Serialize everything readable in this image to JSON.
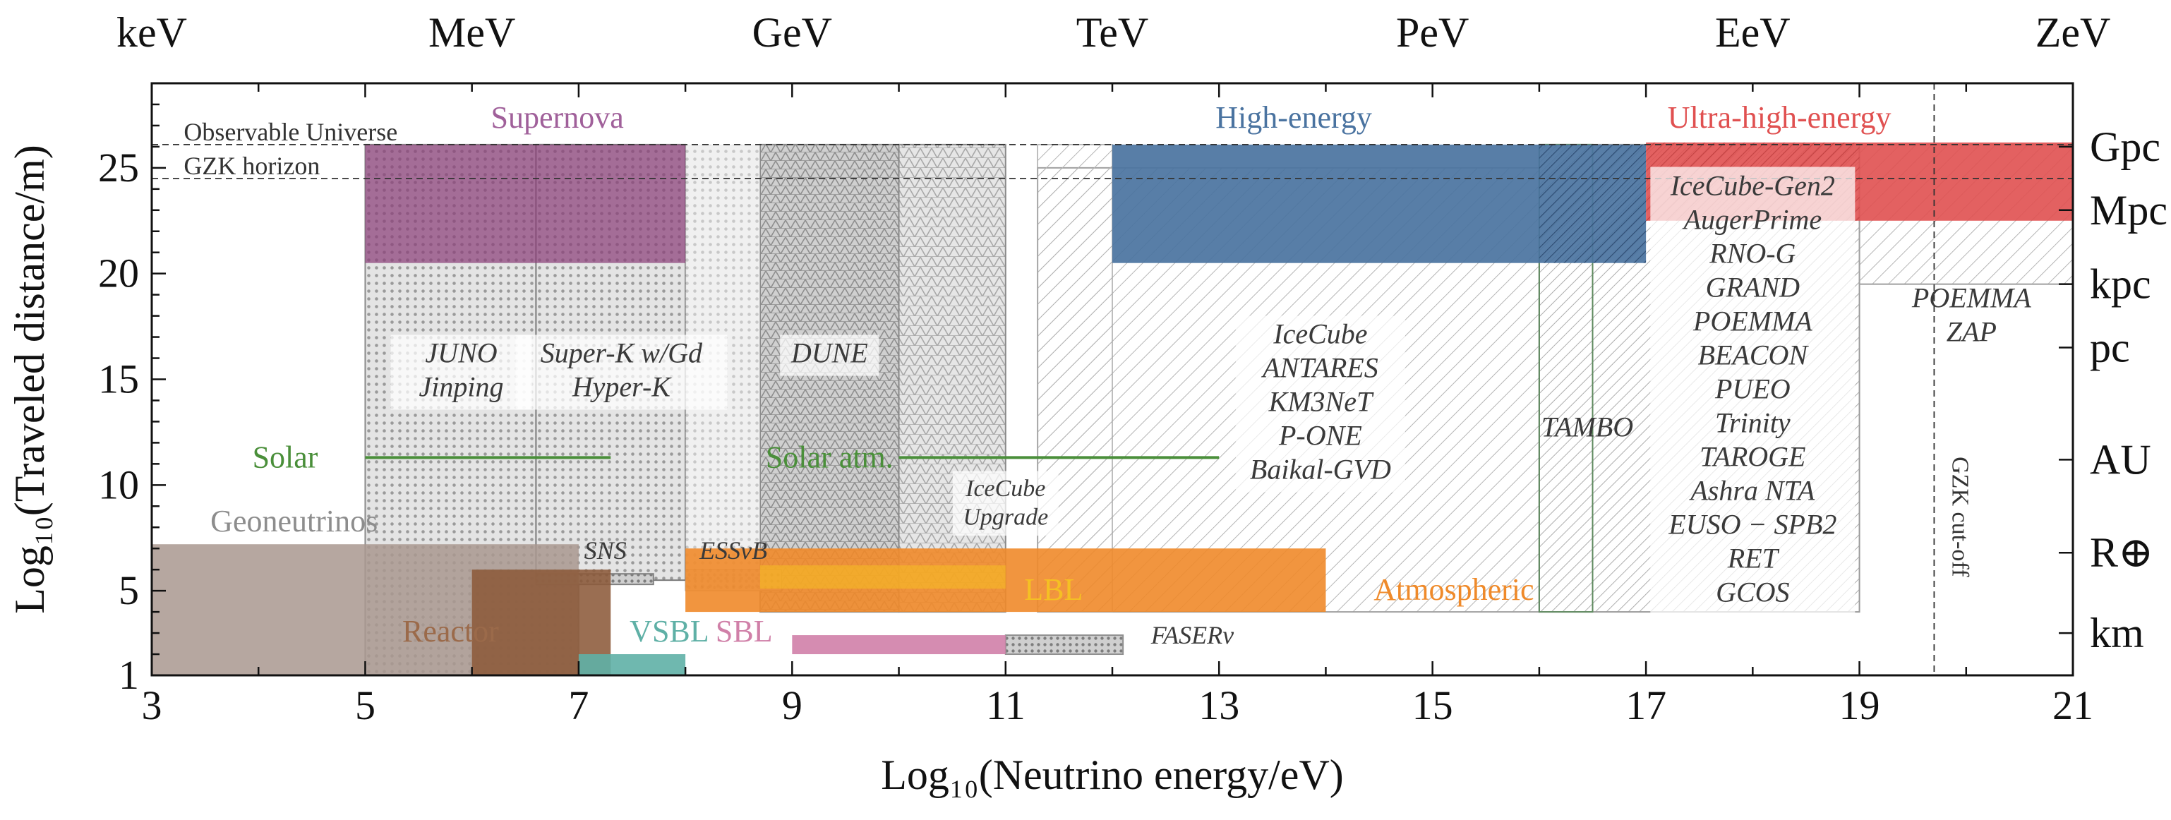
{
  "chart_data": {
    "type": "range-region",
    "title": "",
    "xlabel": "Log₁₀(Neutrino energy/eV)",
    "ylabel": "Log₁₀(Traveled distance/m)",
    "xlim": [
      3,
      21
    ],
    "ylim": [
      1,
      29
    ],
    "x_ticks": [
      3,
      5,
      7,
      9,
      11,
      13,
      15,
      17,
      19,
      21
    ],
    "y_ticks": [
      1,
      5,
      10,
      15,
      20,
      25
    ],
    "top_axis_labels": [
      {
        "x": 3,
        "label": "keV"
      },
      {
        "x": 6,
        "label": "MeV"
      },
      {
        "x": 9,
        "label": "GeV"
      },
      {
        "x": 12,
        "label": "TeV"
      },
      {
        "x": 15,
        "label": "PeV"
      },
      {
        "x": 18,
        "label": "EeV"
      },
      {
        "x": 21,
        "label": "ZeV"
      }
    ],
    "right_axis_labels": [
      {
        "y": 26.0,
        "label": "Gpc"
      },
      {
        "y": 23.0,
        "label": "Mpc"
      },
      {
        "y": 19.5,
        "label": "kpc"
      },
      {
        "y": 16.5,
        "label": "pc"
      },
      {
        "y": 11.2,
        "label": "AU"
      },
      {
        "y": 6.8,
        "label": "R⊕"
      },
      {
        "y": 3.0,
        "label": "km"
      }
    ],
    "reference_lines": [
      {
        "y": 26.1,
        "label": "Observable Universe"
      },
      {
        "y": 24.5,
        "label": "GZK horizon"
      }
    ],
    "vertical_lines": [
      {
        "x": 19.7,
        "label": "GZK cut-off"
      }
    ],
    "source_regions": [
      {
        "name": "Geoneutrinos",
        "x": [
          3,
          7
        ],
        "y": [
          1,
          7.2
        ],
        "color": "#a9988f"
      },
      {
        "name": "Reactor",
        "x": [
          6,
          7.3
        ],
        "y": [
          1,
          6.0
        ],
        "color": "#8c5a3a"
      },
      {
        "name": "Supernova",
        "x": [
          5,
          8
        ],
        "y": [
          20.5,
          26.1
        ],
        "color": "#8b3f78"
      },
      {
        "name": "Solar",
        "x": [
          5,
          7.3
        ],
        "y": [
          11.3,
          11.3
        ],
        "color": "#4a8f3a"
      },
      {
        "name": "Solar atm.",
        "x": [
          10,
          13
        ],
        "y": [
          11.3,
          11.3
        ],
        "color": "#4a8f3a"
      },
      {
        "name": "VSBL",
        "x": [
          7,
          8
        ],
        "y": [
          1,
          2.0
        ],
        "color": "#5fb0a6"
      },
      {
        "name": "SBL",
        "x": [
          9,
          11
        ],
        "y": [
          2.0,
          2.9
        ],
        "color": "#d080a8"
      },
      {
        "name": "LBL",
        "x": [
          8.7,
          11
        ],
        "y": [
          5.1,
          6.2
        ],
        "color": "#f5c023"
      },
      {
        "name": "Atmospheric",
        "x": [
          8,
          14
        ],
        "y": [
          4.0,
          7.0
        ],
        "color": "#ef8a2a"
      },
      {
        "name": "High-energy",
        "x": [
          12,
          17
        ],
        "y": [
          20.5,
          26.1
        ],
        "color": "#4a73a0"
      },
      {
        "name": "Ultra-high-energy",
        "x": [
          17,
          21
        ],
        "y": [
          22.5,
          26.2
        ],
        "color": "#e05050"
      }
    ],
    "detector_regions": [
      {
        "label": "JUNO\nJinping",
        "x": [
          5,
          7
        ],
        "y": [
          1,
          26.1
        ]
      },
      {
        "label": "Super-K w/Gd\nHyper-K",
        "x": [
          6.6,
          8
        ],
        "y": [
          5.5,
          26.1
        ]
      },
      {
        "label": "DUNE",
        "x": [
          8.7,
          10
        ],
        "y": [
          4.0,
          26.1
        ]
      },
      {
        "label": "IceCube\nUpgrade",
        "x": [
          10,
          11
        ],
        "y": [
          4.0,
          26.1
        ]
      },
      {
        "label": "IceCube\nANTARES\nKM3NeT\nP-ONE\nBaikal-GVD",
        "x": [
          11.3,
          16
        ],
        "y": [
          4.0,
          25.0
        ]
      },
      {
        "label": "TAMBO",
        "x": [
          16,
          16.5
        ],
        "y": [
          4.0,
          26.1
        ]
      },
      {
        "label": "IceCube-Gen2\nAugerPrime\nRNO-G\nGRAND\nPOEMMA\nBEACON\nPUEO\nTrinity\nTAROGE\nAshra NTA\nEUSO − SPB2\nRET\nGCOS",
        "x": [
          16,
          19
        ],
        "y": [
          4.0,
          26.1
        ]
      },
      {
        "label": "POEMMA\nZAP",
        "x": [
          19,
          21
        ],
        "y": [
          19.5,
          26.1
        ]
      },
      {
        "label": "SNS",
        "x": [
          6.6,
          7.7
        ],
        "y": [
          5.3,
          5.8
        ]
      },
      {
        "label": "ESSνB",
        "x": [
          8,
          8.9
        ],
        "y": [
          5.0,
          6.0
        ]
      },
      {
        "label": "FASERν",
        "x": [
          11,
          12.1
        ],
        "y": [
          2.0,
          2.9
        ]
      }
    ]
  }
}
